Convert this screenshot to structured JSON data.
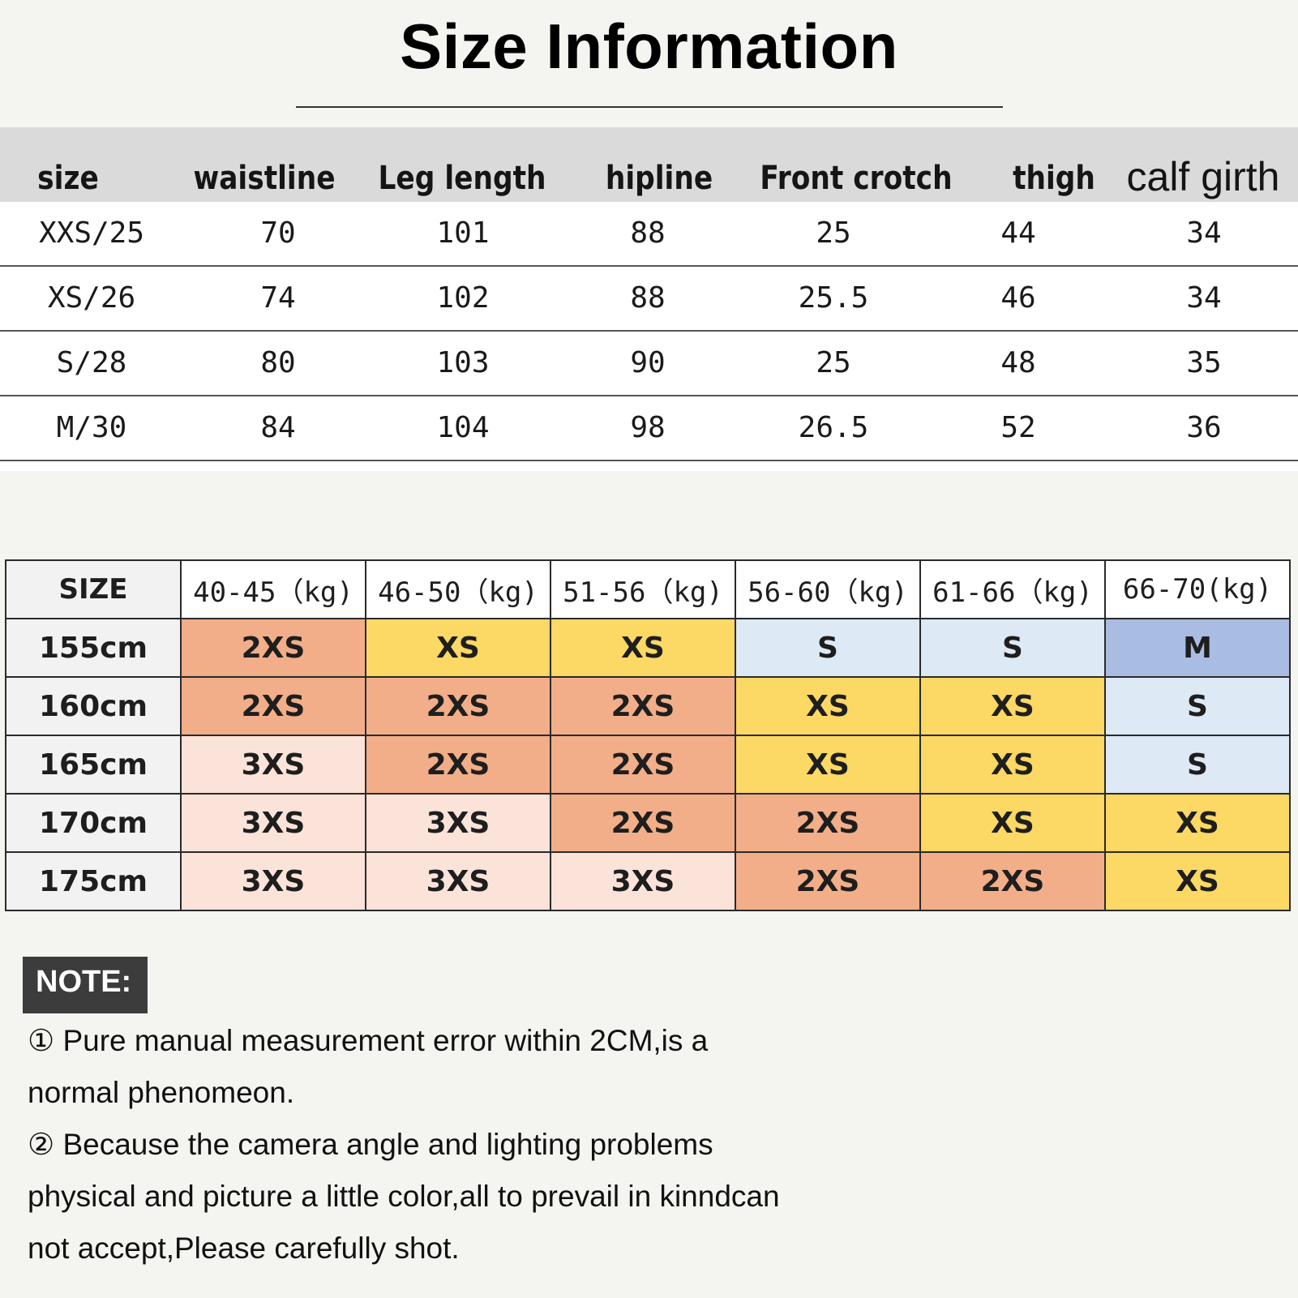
{
  "title": "Size Information",
  "table1": {
    "headers": [
      "size",
      "waistline",
      "Leg length",
      "hipline",
      "Front crotch",
      "thigh",
      "calf girth"
    ],
    "rows": [
      [
        "XXS/25",
        "70",
        "101",
        "88",
        "25",
        "44",
        "34"
      ],
      [
        "XS/26",
        "74",
        "102",
        "88",
        "25.5",
        "46",
        "34"
      ],
      [
        "S/28",
        "80",
        "103",
        "90",
        "25",
        "48",
        "35"
      ],
      [
        "M/30",
        "84",
        "104",
        "98",
        "26.5",
        "52",
        "36"
      ]
    ]
  },
  "table2": {
    "headers": [
      "SIZE",
      "40-45（kg)",
      "46-50（kg)",
      "51-56（kg)",
      "56-60（kg)",
      "61-66（kg)",
      "66-70(kg)"
    ],
    "rows": [
      {
        "height": "155cm",
        "sizes": [
          "2XS",
          "XS",
          "XS",
          "S",
          "S",
          "M"
        ]
      },
      {
        "height": "160cm",
        "sizes": [
          "2XS",
          "2XS",
          "2XS",
          "XS",
          "XS",
          "S"
        ]
      },
      {
        "height": "165cm",
        "sizes": [
          "3XS",
          "2XS",
          "2XS",
          "XS",
          "XS",
          "S"
        ]
      },
      {
        "height": "170cm",
        "sizes": [
          "3XS",
          "3XS",
          "2XS",
          "2XS",
          "XS",
          "XS"
        ]
      },
      {
        "height": "175cm",
        "sizes": [
          "3XS",
          "3XS",
          "3XS",
          "2XS",
          "2XS",
          "XS"
        ]
      }
    ],
    "size_colors": {
      "3XS": "#fbe3d9",
      "2XS": "#f2ae88",
      "XS": "#fcd864",
      "S": "#dde9f5",
      "M": "#a9bce2"
    }
  },
  "note": {
    "label": "NOTE:",
    "lines": [
      "① Pure manual measurement error within 2CM,is a",
      "normal phenomeon.",
      "② Because the camera angle and lighting problems",
      "physical and picture a little color,all to prevail in kinndcan",
      "not accept,Please carefully shot."
    ]
  }
}
